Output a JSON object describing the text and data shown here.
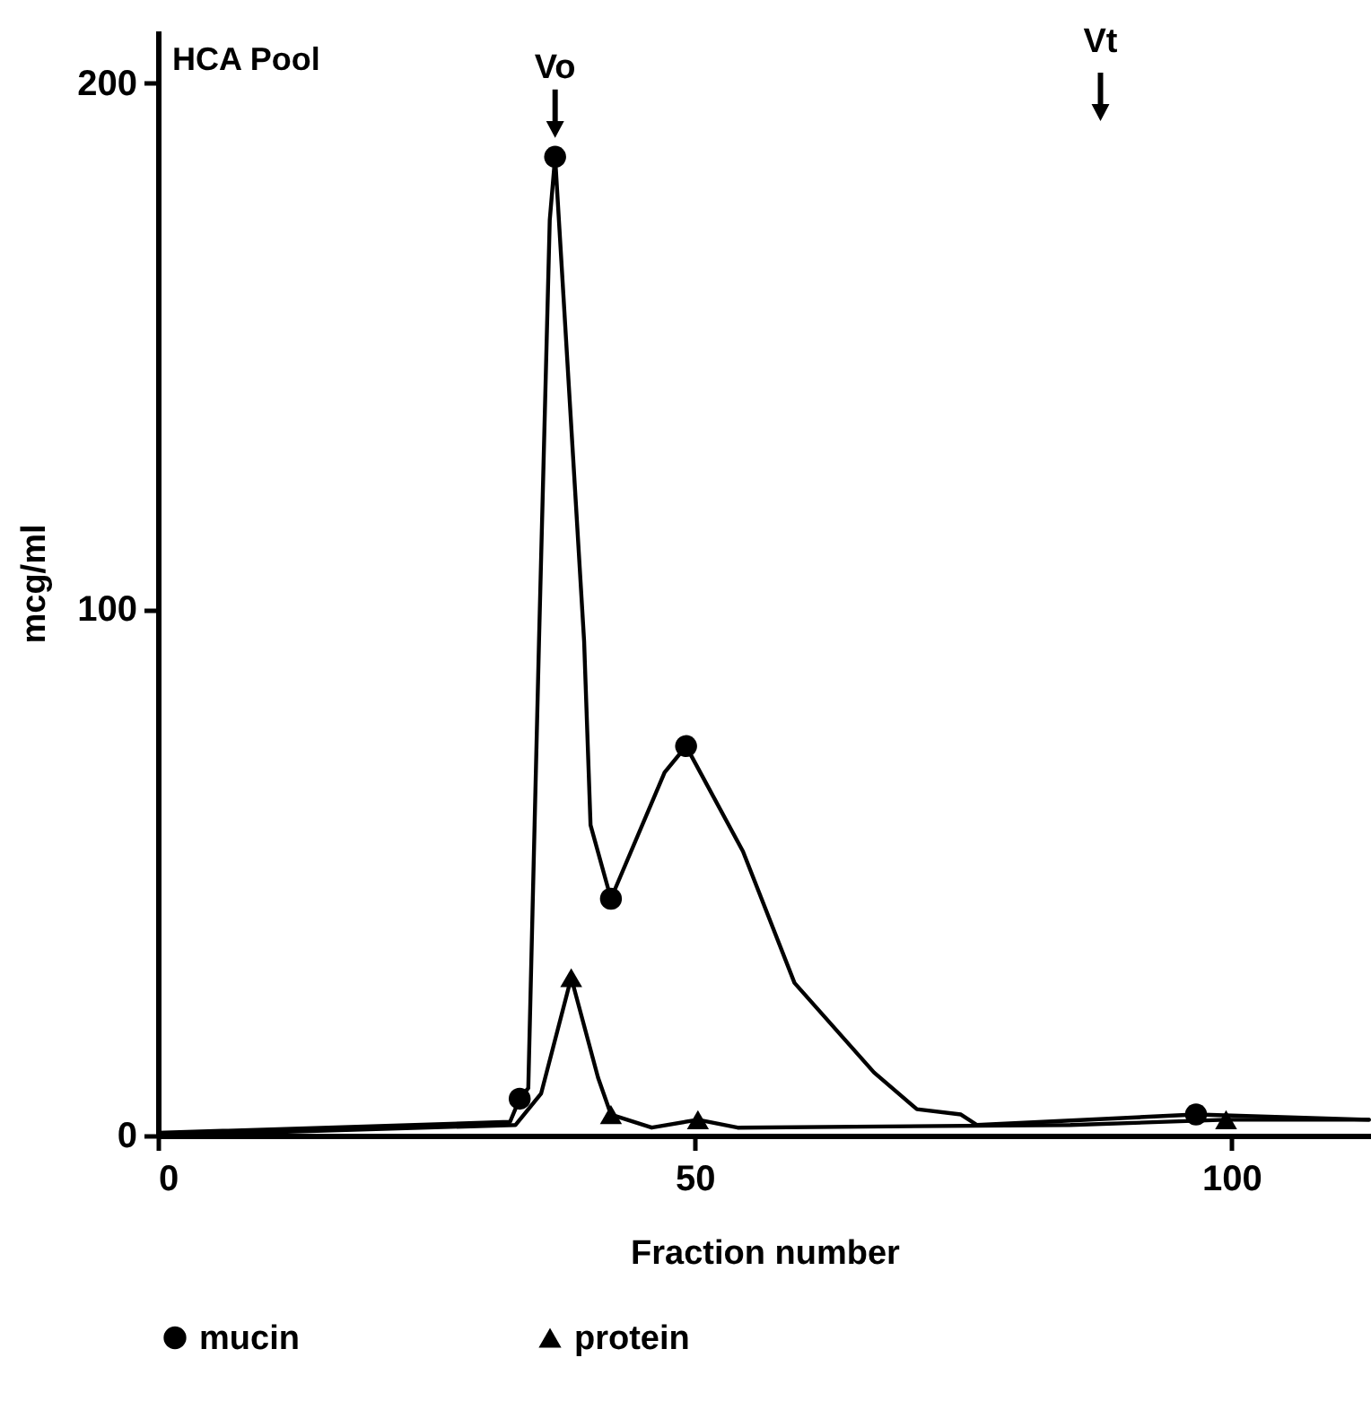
{
  "chart_data": {
    "type": "line",
    "xlabel": "Fraction number",
    "ylabel": "mcg/ml",
    "annotations": [
      "HCA Pool",
      {
        "text": "Vo",
        "x": 37,
        "y": 186
      },
      "Vt"
    ],
    "xlim": [
      0,
      113
    ],
    "ylim": [
      0,
      210
    ],
    "xticks": [
      0,
      50,
      100
    ],
    "yticks": [
      0,
      100,
      200
    ],
    "grid": false,
    "legend": "bottom",
    "line_style": "solid",
    "series": [
      {
        "name": "mucin",
        "color": "#000000",
        "x": [
          0,
          32.8,
          33.7,
          34.5,
          35.5,
          36.5,
          37,
          39.7,
          40.3,
          42.2,
          47.2,
          49.2,
          54.5,
          59.3,
          66.7,
          70.7,
          74.8,
          76.3,
          96.7,
          112.8
        ],
        "values": [
          0.5,
          2.6,
          7,
          9,
          94,
          174,
          186,
          94,
          59,
          45,
          69,
          74,
          54,
          29,
          12,
          5,
          4,
          2,
          4,
          3
        ]
      },
      {
        "name": "protein",
        "color": "#000000",
        "x": [
          0,
          33.3,
          35.7,
          38.5,
          41,
          42.2,
          46,
          50.3,
          54,
          85,
          99.5,
          112.8
        ],
        "values": [
          0,
          2,
          8,
          30,
          11,
          4,
          1.5,
          3,
          1.5,
          2,
          3,
          3
        ]
      },
      {
        "type": "scatter",
        "color": "#000000",
        "marker": "circle",
        "x": [
          33.7,
          37,
          42.2,
          49.2,
          96.7
        ],
        "values": [
          7,
          186,
          45,
          74,
          4
        ]
      },
      {
        "type": "scatter",
        "color": "#000000",
        "marker": "triangle",
        "x": [
          38.5,
          42.2,
          50.3,
          99.5
        ],
        "values": [
          30,
          4,
          3,
          3
        ]
      }
    ]
  }
}
